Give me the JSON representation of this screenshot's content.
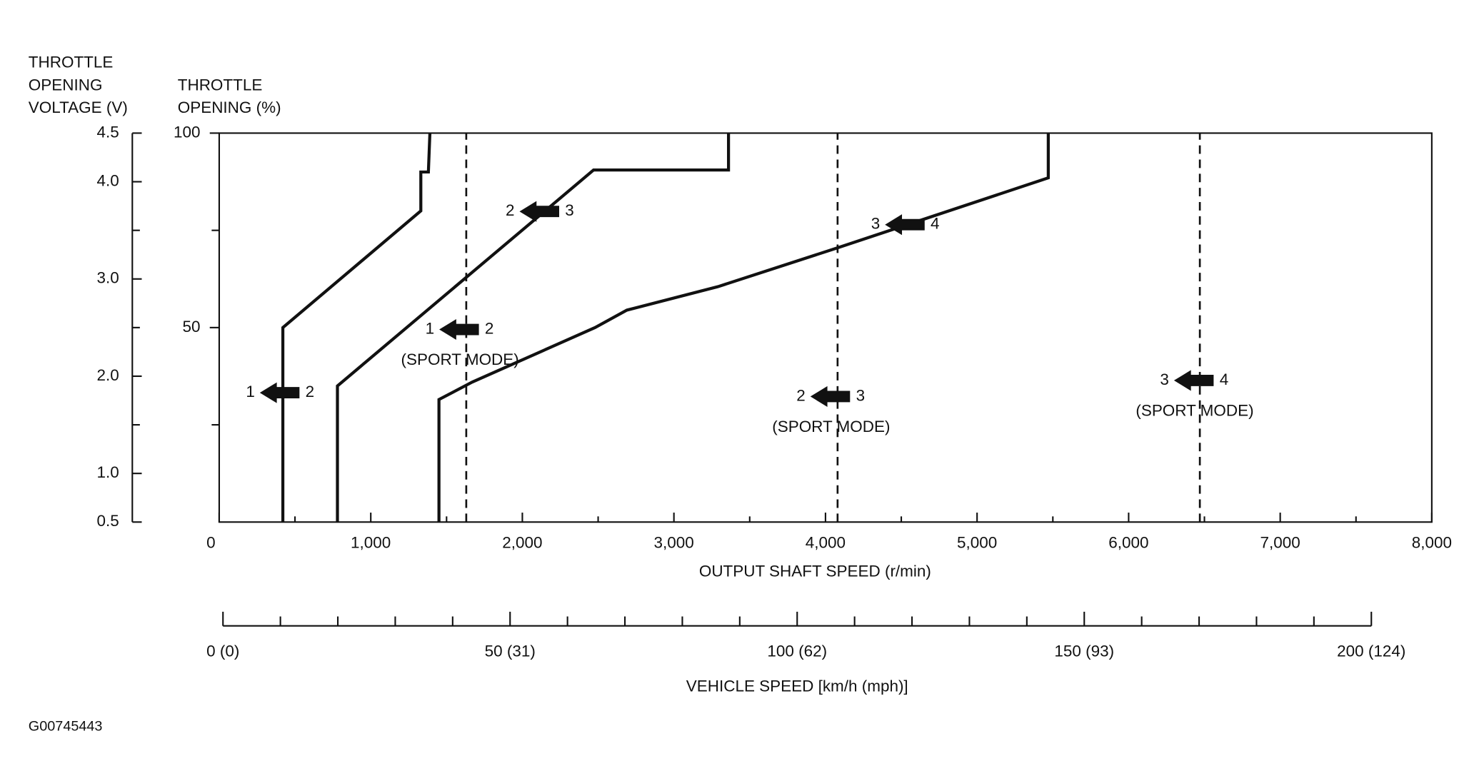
{
  "chart_data": {
    "type": "line",
    "figure_id": "G00745443",
    "y2label": [
      "THROTTLE",
      "OPENING",
      "VOLTAGE (V)"
    ],
    "ylabel": [
      "THROTTLE",
      "OPENING (%)"
    ],
    "xlabel": "OUTPUT SHAFT SPEED (r/min)",
    "x2label": "VEHICLE SPEED [km/h (mph)]",
    "xlim": [
      0,
      8000
    ],
    "xticks": [
      0,
      {
        "value": 1000,
        "label": "1,000"
      },
      {
        "value": 2000,
        "label": "2,000"
      },
      {
        "value": 3000,
        "label": "3,000"
      },
      {
        "value": 4000,
        "label": "4,000"
      },
      {
        "value": 5000,
        "label": "5,000"
      },
      {
        "value": 6000,
        "label": "6,000"
      },
      {
        "value": 7000,
        "label": "7,000"
      },
      {
        "value": 8000,
        "label": "8,000"
      }
    ],
    "xminorticks": [
      500,
      1500,
      2500,
      3500,
      4500,
      5500,
      6500,
      7500
    ],
    "ylim": [
      0,
      100
    ],
    "yticks": [
      50,
      100
    ],
    "yminorticks": [
      25,
      75
    ],
    "y2lim": [
      0.5,
      4.5
    ],
    "y2ticks": [
      0.5,
      {
        "value": 1,
        "label": "1.0"
      },
      {
        "value": 2,
        "label": "2.0"
      },
      {
        "value": 3,
        "label": "3.0"
      },
      {
        "value": 4,
        "label": "4.0"
      },
      4.5
    ],
    "y2minorticks": [
      1.5,
      2.5,
      3.5
    ],
    "x2lim": [
      0,
      200
    ],
    "x2ticks": [
      {
        "value": 0,
        "label": "0 (0)"
      },
      {
        "value": 50,
        "label": "50 (31)"
      },
      {
        "value": 100,
        "label": "100 (62)"
      },
      {
        "value": 150,
        "label": "150 (93)"
      },
      {
        "value": 200,
        "label": "200 (124)"
      }
    ],
    "x2minorticks": [
      10,
      20,
      30,
      40,
      60,
      70,
      80,
      90,
      110,
      120,
      130,
      140,
      160,
      170,
      180,
      190
    ],
    "series": [
      {
        "color": "#111111",
        "dash": false,
        "x": [
          420,
          420,
          1330,
          1330,
          1380,
          1390
        ],
        "values": [
          0,
          50,
          80,
          90,
          90,
          100
        ]
      },
      {
        "color": "#111111",
        "dash": false,
        "x": [
          780,
          780,
          2470,
          3360,
          3360
        ],
        "values": [
          0,
          35,
          90.5,
          90.5,
          100
        ]
      },
      {
        "color": "#111111",
        "dash": false,
        "x": [
          1450,
          1450,
          1670,
          2480,
          2690,
          3290,
          4080,
          5470,
          5470
        ],
        "values": [
          0,
          31.5,
          36,
          50,
          54.5,
          60.5,
          70.5,
          88.5,
          100
        ]
      },
      {
        "color": "#111111",
        "dash": true,
        "x": [
          1630,
          1630
        ],
        "values": [
          0,
          100
        ]
      },
      {
        "color": "#111111",
        "dash": true,
        "x": [
          4080,
          4080
        ],
        "values": [
          0,
          100
        ]
      },
      {
        "color": "#111111",
        "dash": true,
        "x": [
          6470,
          6470
        ],
        "values": [
          0,
          100
        ]
      }
    ],
    "annotations": [
      {
        "from": "1",
        "to": "2"
      },
      {
        "from": "2",
        "to": "3"
      },
      {
        "from": "1",
        "to": "2",
        "note": "(SPORT MODE)"
      },
      {
        "from": "3",
        "to": "4"
      },
      {
        "from": "2",
        "to": "3",
        "note": "(SPORT MODE)"
      },
      {
        "from": "3",
        "to": "4",
        "note": "(SPORT MODE)"
      }
    ]
  }
}
